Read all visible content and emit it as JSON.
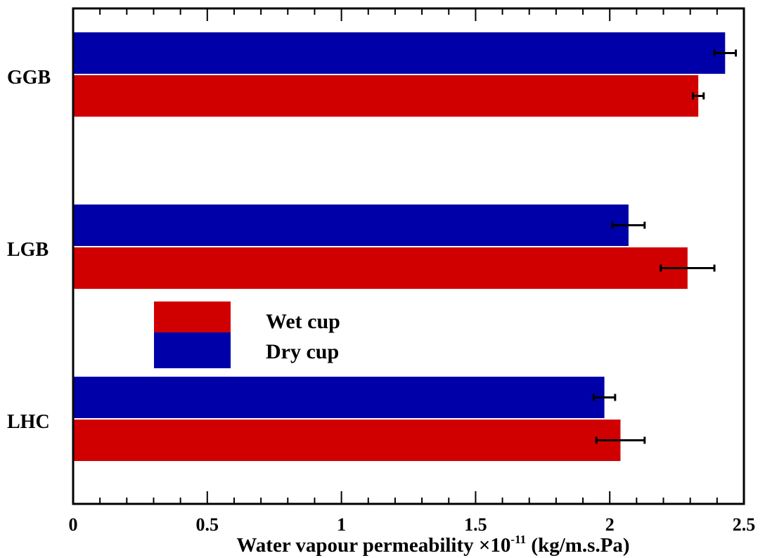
{
  "chart_data": {
    "type": "bar",
    "orientation": "horizontal",
    "categories": [
      "GGB",
      "LGB",
      "LHC"
    ],
    "series": [
      {
        "name": "Dry cup",
        "color": "#0000a8",
        "values": [
          2.43,
          2.07,
          1.98
        ],
        "errors": [
          0.04,
          0.06,
          0.04
        ]
      },
      {
        "name": "Wet cup",
        "color": "#d00000",
        "values": [
          2.33,
          2.29,
          2.04
        ],
        "errors": [
          0.02,
          0.1,
          0.09
        ]
      }
    ],
    "xlabel_main": "Water vapour permeability ×10",
    "xlabel_exponent": "-11",
    "xlabel_unit": " (kg/m.s.Pa)",
    "xlim": [
      0,
      2.5
    ],
    "xticks": [
      "0",
      "0.5",
      "1",
      "1.5",
      "2",
      "2.5"
    ],
    "legend": {
      "placement": "center-left",
      "entries": [
        "Wet cup",
        "Dry cup"
      ]
    },
    "grid": false
  }
}
